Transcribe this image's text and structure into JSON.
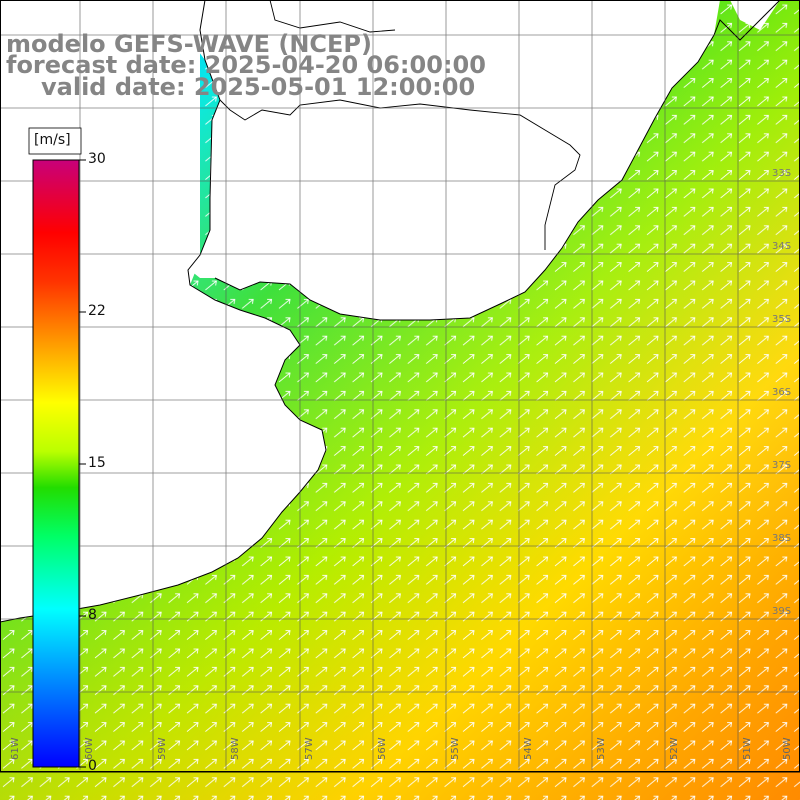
{
  "title": {
    "model": "modelo GEFS-WAVE (NCEP)",
    "forecast": "forecast date: 2025-04-20 06:00:00",
    "valid": "valid date: 2025-05-01 12:00:00"
  },
  "colorbar": {
    "unit": "[m/s]",
    "ticks": [
      "30",
      "22",
      "15",
      "8",
      "0"
    ],
    "range": [
      0,
      30
    ]
  },
  "axes": {
    "lon_labels": [
      "61W",
      "60W",
      "59W",
      "58W",
      "57W",
      "56W",
      "55W",
      "54W",
      "53W",
      "52W",
      "51W",
      "50W"
    ],
    "lat_labels": [
      "33S",
      "34S",
      "35S",
      "36S",
      "37S",
      "38S",
      "39S"
    ]
  },
  "colors": {
    "ocean_low": "#00ffff",
    "ocean_mid": "#33dd33",
    "ocean_high": "#ff6600",
    "land": "#ffffff",
    "coast": "#000000",
    "grid": "#555555"
  },
  "icons": [
    "wind-arrow-icon"
  ]
}
